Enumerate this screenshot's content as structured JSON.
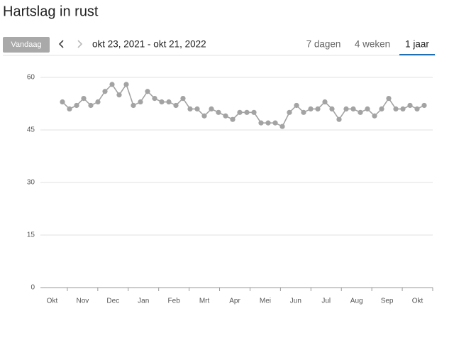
{
  "header": {
    "title": "Hartslag in rust",
    "today_button": "Vandaag",
    "date_range": "okt 23, 2021 - okt 21, 2022",
    "tabs": [
      "7 dagen",
      "4 weken",
      "1 jaar"
    ],
    "active_tab": 2
  },
  "chart_data": {
    "type": "line",
    "color": "#a3a3a3",
    "grid": true,
    "ylim": [
      0,
      60
    ],
    "yticks": [
      0,
      15,
      30,
      45,
      60
    ],
    "x_labels": [
      "Okt",
      "Nov",
      "Dec",
      "Jan",
      "Feb",
      "Mrt",
      "Apr",
      "Mei",
      "Jun",
      "Jul",
      "Aug",
      "Sep",
      "Okt"
    ],
    "values": [
      53,
      51,
      52,
      54,
      52,
      53,
      56,
      58,
      55,
      58,
      52,
      53,
      56,
      54,
      53,
      53,
      52,
      54,
      51,
      51,
      49,
      51,
      50,
      49,
      48,
      50,
      50,
      50,
      47,
      47,
      47,
      46,
      50,
      52,
      50,
      51,
      51,
      53,
      51,
      48,
      51,
      51,
      50,
      51,
      49,
      51,
      54,
      51,
      51,
      52,
      51,
      52
    ]
  }
}
